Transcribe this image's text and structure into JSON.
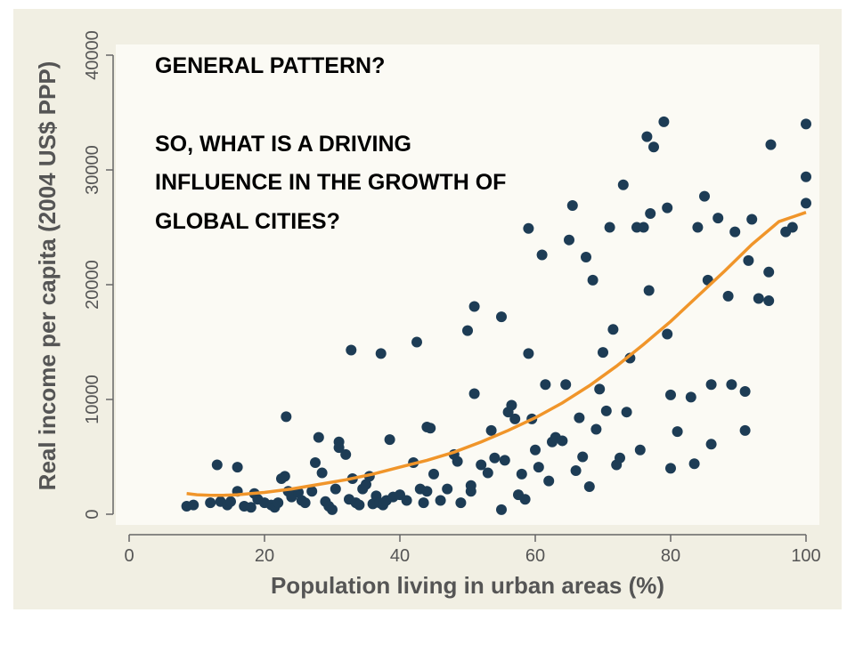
{
  "annotations": {
    "line1": "GENERAL PATTERN?",
    "line2": "SO, WHAT IS A DRIVING",
    "line3": "INFLUENCE IN THE GROWTH OF",
    "line4": "GLOBAL CITIES?"
  },
  "colors": {
    "background": "#f1efe3",
    "plot_area": "#fbfaf4",
    "dot": "#1d3c55",
    "fit_line": "#f0952a",
    "axis_text": "#555555"
  },
  "chart_data": {
    "type": "scatter",
    "xlabel": "Population living in urban areas (%)",
    "ylabel": "Real income per capita (2004 US$ PPP)",
    "xlim": [
      0,
      100
    ],
    "ylim": [
      0,
      40000
    ],
    "xticks": [
      "0",
      "20",
      "40",
      "60",
      "80",
      "100"
    ],
    "yticks": [
      "0",
      "10000",
      "20000",
      "30000",
      "40000"
    ],
    "grid": false,
    "series": [
      {
        "points": [
          [
            8.5,
            700
          ],
          [
            9.5,
            800
          ],
          [
            12,
            1000
          ],
          [
            13,
            4300
          ],
          [
            13.5,
            1100
          ],
          [
            14.5,
            800
          ],
          [
            15,
            1100
          ],
          [
            16,
            4100
          ],
          [
            16,
            2000
          ],
          [
            17,
            700
          ],
          [
            18,
            600
          ],
          [
            18.5,
            1800
          ],
          [
            19,
            1300
          ],
          [
            20,
            1000
          ],
          [
            21,
            800
          ],
          [
            21.5,
            600
          ],
          [
            22,
            1000
          ],
          [
            22.5,
            3100
          ],
          [
            23,
            3300
          ],
          [
            23.5,
            2000
          ],
          [
            23.2,
            8500
          ],
          [
            24,
            1500
          ],
          [
            25,
            1900
          ],
          [
            25.5,
            1200
          ],
          [
            26,
            1000
          ],
          [
            27,
            2000
          ],
          [
            27.5,
            4500
          ],
          [
            28,
            6700
          ],
          [
            28.5,
            3600
          ],
          [
            29,
            1100
          ],
          [
            29.5,
            700
          ],
          [
            30,
            400
          ],
          [
            30.5,
            2200
          ],
          [
            31,
            6300
          ],
          [
            31,
            5800
          ],
          [
            32,
            5200
          ],
          [
            32.5,
            1300
          ],
          [
            33,
            3100
          ],
          [
            32.8,
            14300
          ],
          [
            33.5,
            1000
          ],
          [
            34,
            800
          ],
          [
            34.5,
            2200
          ],
          [
            35,
            2600
          ],
          [
            35.5,
            3300
          ],
          [
            36,
            900
          ],
          [
            36.5,
            1600
          ],
          [
            37,
            1000
          ],
          [
            37.2,
            14000
          ],
          [
            37.5,
            800
          ],
          [
            38,
            1200
          ],
          [
            38.5,
            6500
          ],
          [
            39,
            1500
          ],
          [
            40,
            1700
          ],
          [
            41,
            1200
          ],
          [
            42,
            4500
          ],
          [
            42.5,
            15000
          ],
          [
            43,
            2200
          ],
          [
            43.5,
            1000
          ],
          [
            44,
            2000
          ],
          [
            44,
            7600
          ],
          [
            44.5,
            7500
          ],
          [
            45,
            3500
          ],
          [
            46,
            1200
          ],
          [
            47,
            2200
          ],
          [
            48,
            5200
          ],
          [
            48.5,
            4600
          ],
          [
            49,
            1000
          ],
          [
            50,
            16000
          ],
          [
            50.5,
            2000
          ],
          [
            50.5,
            2500
          ],
          [
            51,
            18100
          ],
          [
            51,
            10500
          ],
          [
            52,
            4300
          ],
          [
            53,
            3600
          ],
          [
            53.5,
            7300
          ],
          [
            54,
            4900
          ],
          [
            55,
            17200
          ],
          [
            55,
            400
          ],
          [
            55.5,
            4700
          ],
          [
            56,
            8900
          ],
          [
            56.5,
            9500
          ],
          [
            57,
            8300
          ],
          [
            57.5,
            1700
          ],
          [
            58,
            3500
          ],
          [
            58.5,
            1300
          ],
          [
            59,
            14000
          ],
          [
            59,
            24900
          ],
          [
            59.5,
            8300
          ],
          [
            60,
            5600
          ],
          [
            60.5,
            4100
          ],
          [
            61,
            22600
          ],
          [
            61.5,
            11300
          ],
          [
            62,
            2900
          ],
          [
            62.5,
            6300
          ],
          [
            63,
            6700
          ],
          [
            64,
            6400
          ],
          [
            64.5,
            11300
          ],
          [
            65,
            23900
          ],
          [
            65.5,
            26900
          ],
          [
            66,
            3800
          ],
          [
            66.5,
            8400
          ],
          [
            67,
            5000
          ],
          [
            67.5,
            22400
          ],
          [
            68,
            2400
          ],
          [
            68.5,
            20400
          ],
          [
            69,
            7400
          ],
          [
            69.5,
            10900
          ],
          [
            70,
            14100
          ],
          [
            70.5,
            9000
          ],
          [
            71,
            25000
          ],
          [
            71.5,
            16100
          ],
          [
            72,
            4300
          ],
          [
            72.5,
            4900
          ],
          [
            73,
            28700
          ],
          [
            73.5,
            8900
          ],
          [
            74,
            13600
          ],
          [
            75,
            25000
          ],
          [
            75.5,
            5600
          ],
          [
            76,
            25000
          ],
          [
            76.5,
            32900
          ],
          [
            76.8,
            19500
          ],
          [
            77,
            26200
          ],
          [
            77.5,
            32000
          ],
          [
            79,
            34200
          ],
          [
            79.5,
            26700
          ],
          [
            79.5,
            15700
          ],
          [
            80,
            10400
          ],
          [
            80,
            4000
          ],
          [
            81,
            7200
          ],
          [
            83,
            10200
          ],
          [
            83.5,
            4400
          ],
          [
            84,
            25000
          ],
          [
            85,
            27700
          ],
          [
            85.5,
            20400
          ],
          [
            86,
            11300
          ],
          [
            86,
            6100
          ],
          [
            87,
            25800
          ],
          [
            88.5,
            19000
          ],
          [
            89,
            11300
          ],
          [
            89.5,
            24600
          ],
          [
            91,
            10700
          ],
          [
            91,
            7300
          ],
          [
            91.5,
            22100
          ],
          [
            92,
            25700
          ],
          [
            93,
            18800
          ],
          [
            94.5,
            18600
          ],
          [
            94.5,
            21100
          ],
          [
            94.8,
            32200
          ],
          [
            97,
            24600
          ],
          [
            98,
            25000
          ],
          [
            100,
            34000
          ],
          [
            100,
            29400
          ],
          [
            100,
            27100
          ]
        ]
      },
      {
        "fit": [
          [
            8.5,
            1800
          ],
          [
            10,
            1700
          ],
          [
            12,
            1650
          ],
          [
            14,
            1650
          ],
          [
            16,
            1700
          ],
          [
            18,
            1800
          ],
          [
            20,
            1900
          ],
          [
            24,
            2200
          ],
          [
            28,
            2600
          ],
          [
            32,
            3000
          ],
          [
            36,
            3500
          ],
          [
            40,
            4100
          ],
          [
            44,
            4700
          ],
          [
            48,
            5400
          ],
          [
            52,
            6300
          ],
          [
            56,
            7300
          ],
          [
            60,
            8400
          ],
          [
            64,
            9700
          ],
          [
            68,
            11200
          ],
          [
            72,
            12900
          ],
          [
            76,
            14800
          ],
          [
            80,
            16800
          ],
          [
            84,
            19000
          ],
          [
            88,
            21200
          ],
          [
            92,
            23500
          ],
          [
            96,
            25500
          ],
          [
            100,
            26300
          ]
        ]
      }
    ]
  }
}
